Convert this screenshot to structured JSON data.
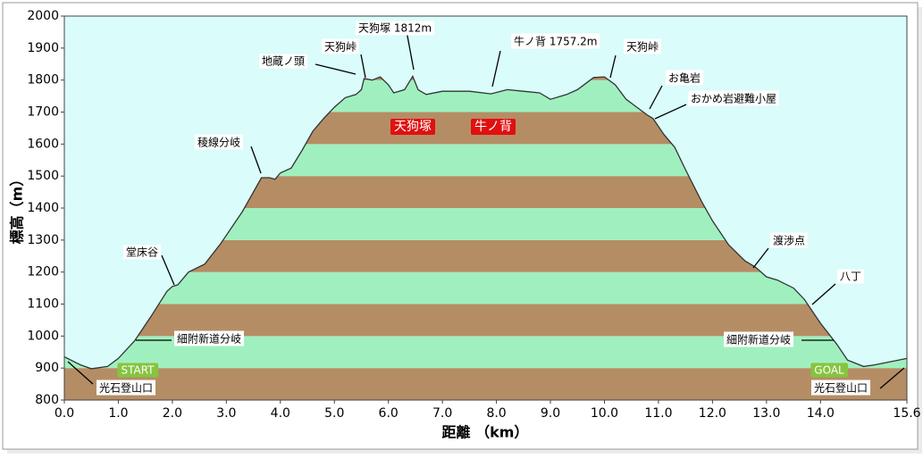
{
  "chart_data": {
    "type": "area",
    "x_label": "距離 （km）",
    "y_label": "標高（m）",
    "x": [
      0.0,
      0.3,
      0.5,
      0.8,
      1.0,
      1.3,
      1.6,
      1.9,
      2.0,
      2.1,
      2.3,
      2.6,
      2.9,
      3.1,
      3.3,
      3.5,
      3.65,
      3.8,
      3.9,
      4.0,
      4.2,
      4.4,
      4.6,
      4.8,
      5.0,
      5.2,
      5.4,
      5.5,
      5.55,
      5.7,
      5.85,
      6.0,
      6.1,
      6.3,
      6.45,
      6.55,
      6.7,
      7.0,
      7.5,
      7.9,
      8.2,
      8.5,
      8.8,
      9.0,
      9.3,
      9.5,
      9.8,
      10.0,
      10.2,
      10.4,
      10.6,
      10.8,
      10.9,
      11.1,
      11.3,
      11.5,
      11.8,
      12.0,
      12.3,
      12.6,
      12.8,
      13.0,
      13.2,
      13.5,
      13.7,
      14.0,
      14.3,
      14.5,
      14.8,
      15.0,
      15.3,
      15.6
    ],
    "values": [
      935,
      910,
      898,
      905,
      930,
      985,
      1060,
      1140,
      1155,
      1160,
      1200,
      1225,
      1290,
      1340,
      1390,
      1450,
      1495,
      1495,
      1490,
      1510,
      1525,
      1580,
      1640,
      1680,
      1715,
      1745,
      1755,
      1770,
      1805,
      1800,
      1810,
      1785,
      1760,
      1770,
      1812,
      1770,
      1755,
      1765,
      1765,
      1757,
      1770,
      1765,
      1760,
      1740,
      1755,
      1770,
      1808,
      1810,
      1785,
      1740,
      1715,
      1690,
      1680,
      1630,
      1590,
      1520,
      1420,
      1360,
      1285,
      1235,
      1215,
      1185,
      1175,
      1150,
      1115,
      1040,
      975,
      925,
      905,
      910,
      920,
      930
    ],
    "line_color": "#333333",
    "band_colors": [
      "#b58d65",
      "#a0f0bf"
    ],
    "sky_color": "#dafcfb",
    "xlim": [
      0,
      15.6
    ],
    "xticks": [
      {
        "value": 0,
        "label": "0.0"
      },
      {
        "value": 1,
        "label": "1.0"
      },
      {
        "value": 2,
        "label": "2.0"
      },
      {
        "value": 3,
        "label": "3.0"
      },
      {
        "value": 4,
        "label": "4.0"
      },
      {
        "value": 5,
        "label": "5.0"
      },
      {
        "value": 6,
        "label": "6.0"
      },
      {
        "value": 7,
        "label": "7.0"
      },
      {
        "value": 8,
        "label": "8.0"
      },
      {
        "value": 9,
        "label": "9.0"
      },
      {
        "value": 10,
        "label": "10.0"
      },
      {
        "value": 11,
        "label": "11.0"
      },
      {
        "value": 12,
        "label": "12.0"
      },
      {
        "value": 13,
        "label": "13.0"
      },
      {
        "value": 14,
        "label": "14.0"
      },
      15.6
    ],
    "ylim": [
      800,
      2000
    ],
    "yticks": [
      800,
      900,
      1000,
      1100,
      1200,
      1300,
      1400,
      1500,
      1600,
      1700,
      1800,
      1900,
      2000
    ],
    "annotations": [
      "天狗塚 1812m",
      "天狗峠",
      "地蔵ノ頭",
      "牛ノ背 1757.2m",
      "天狗峠",
      "お亀岩",
      "おかめ岩避難小屋",
      "稜線分岐",
      "堂床谷",
      "渡渉点",
      "八丁",
      "細附新道分岐",
      "細附新道分岐",
      "光石登山口",
      "光石登山口"
    ],
    "tags": [
      "天狗塚",
      "牛ノ背",
      "START",
      "GOAL"
    ]
  }
}
